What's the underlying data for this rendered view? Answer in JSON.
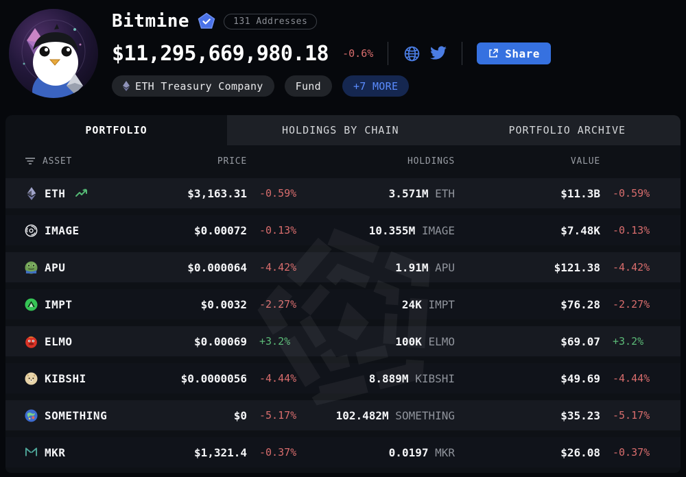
{
  "colors": {
    "accent_blue": "#3671e0",
    "link_blue": "#5b8cff",
    "negative_red": "#d96d6d",
    "positive_green": "#5cbb78",
    "page_bg": "#06080c",
    "panel_bg": "#0e1116"
  },
  "header": {
    "name": "Bitmine",
    "verified_badge": "verified-pentagon-check",
    "addresses_badge": "131 Addresses",
    "total_value": "$11,295,669,980.18",
    "total_change": "-0.6%",
    "icons": [
      "globe-icon",
      "twitter-icon"
    ],
    "share_label": "Share",
    "tags": [
      {
        "label": "ETH Treasury Company",
        "icon": "eth-mini"
      },
      {
        "label": "Fund",
        "icon": null
      },
      {
        "label": "+7 MORE",
        "icon": null,
        "style": "more"
      }
    ]
  },
  "tabs": [
    {
      "label": "PORTFOLIO",
      "active": true
    },
    {
      "label": "HOLDINGS BY CHAIN",
      "active": false
    },
    {
      "label": "PORTFOLIO ARCHIVE",
      "active": false
    }
  ],
  "table": {
    "headers": {
      "asset": "ASSET",
      "price": "PRICE",
      "holdings": "HOLDINGS",
      "value": "VALUE"
    },
    "rows": [
      {
        "icon": "eth",
        "asset": "ETH",
        "trending": true,
        "price": "$3,163.31",
        "price_change": "-0.59%",
        "holdings": "3.571M",
        "ticker": "ETH",
        "value": "$11.3B",
        "value_change": "-0.59%"
      },
      {
        "icon": "image",
        "asset": "IMAGE",
        "trending": false,
        "price": "$0.00072",
        "price_change": "-0.13%",
        "holdings": "10.355M",
        "ticker": "IMAGE",
        "value": "$7.48K",
        "value_change": "-0.13%"
      },
      {
        "icon": "apu",
        "asset": "APU",
        "trending": false,
        "price": "$0.000064",
        "price_change": "-4.42%",
        "holdings": "1.91M",
        "ticker": "APU",
        "value": "$121.38",
        "value_change": "-4.42%"
      },
      {
        "icon": "impt",
        "asset": "IMPT",
        "trending": false,
        "price": "$0.0032",
        "price_change": "-2.27%",
        "holdings": "24K",
        "ticker": "IMPT",
        "value": "$76.28",
        "value_change": "-2.27%"
      },
      {
        "icon": "elmo",
        "asset": "ELMO",
        "trending": false,
        "price": "$0.00069",
        "price_change": "+3.2%",
        "holdings": "100K",
        "ticker": "ELMO",
        "value": "$69.07",
        "value_change": "+3.2%"
      },
      {
        "icon": "kibshi",
        "asset": "KIBSHI",
        "trending": false,
        "price": "$0.0000056",
        "price_change": "-4.44%",
        "holdings": "8.889M",
        "ticker": "KIBSHI",
        "value": "$49.69",
        "value_change": "-4.44%"
      },
      {
        "icon": "something",
        "asset": "SOMETHING",
        "trending": false,
        "price": "$0",
        "price_change": "-5.17%",
        "holdings": "102.482M",
        "ticker": "SOMETHING",
        "value": "$35.23",
        "value_change": "-5.17%"
      },
      {
        "icon": "mkr",
        "asset": "MKR",
        "trending": false,
        "price": "$1,321.4",
        "price_change": "-0.37%",
        "holdings": "0.0197",
        "ticker": "MKR",
        "value": "$26.08",
        "value_change": "-0.37%"
      }
    ]
  }
}
